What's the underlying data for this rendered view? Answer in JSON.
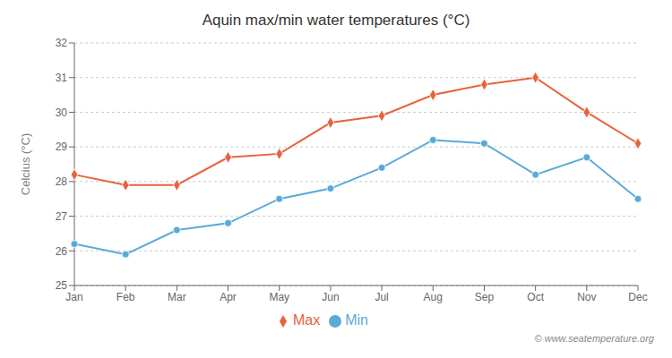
{
  "chart_data": {
    "type": "line",
    "title": "Aquin max/min water temperatures (°C)",
    "ylabel": "Celcius (°C)",
    "categories": [
      "Jan",
      "Feb",
      "Mar",
      "Apr",
      "May",
      "Jun",
      "Jul",
      "Aug",
      "Sep",
      "Oct",
      "Nov",
      "Dec"
    ],
    "series": [
      {
        "name": "Max",
        "color": "#e8623c",
        "marker": "diamond",
        "values": [
          28.2,
          27.9,
          27.9,
          28.7,
          28.8,
          29.7,
          29.9,
          30.5,
          30.8,
          31.0,
          30.0,
          29.1
        ]
      },
      {
        "name": "Min",
        "color": "#5aaad8",
        "marker": "circle",
        "values": [
          26.2,
          25.9,
          26.6,
          26.8,
          27.5,
          27.8,
          28.4,
          29.2,
          29.1,
          28.2,
          28.7,
          27.5
        ]
      }
    ],
    "ylim": [
      25,
      32
    ],
    "yticks": [
      25,
      26,
      27,
      28,
      29,
      30,
      31,
      32
    ],
    "grid": true,
    "legend": "bottom",
    "annotations": [
      "© www.seatemperature.org"
    ]
  }
}
